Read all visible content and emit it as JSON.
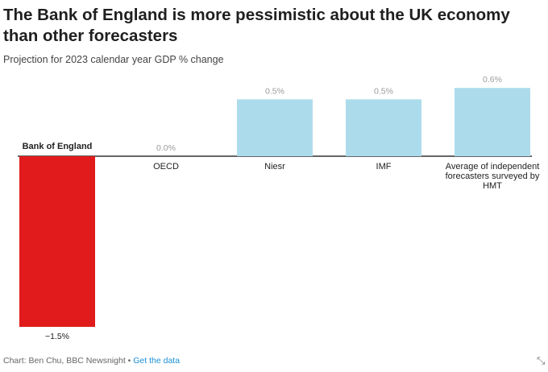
{
  "title": "The Bank of England is more pessimistic about the UK economy than other forecasters",
  "subtitle": "Projection for 2023 calendar year GDP % change",
  "footer": {
    "source": "Chart: Ben Chu, BBC Newsnight",
    "separator": " • ",
    "link": "Get the data"
  },
  "expand_icon": "⤡",
  "chart_data": {
    "type": "bar",
    "categories": [
      "Bank of England",
      "OECD",
      "Niesr",
      "IMF",
      "Average of independent forecasters surveyed by HMT"
    ],
    "values": [
      -1.5,
      0.0,
      0.5,
      0.5,
      0.6
    ],
    "value_labels": [
      "−1.5%",
      "0.0%",
      "0.5%",
      "0.5%",
      "0.6%"
    ],
    "colors": {
      "negative": "#e11b1b",
      "positive": "#acdcec",
      "label_positive": "#9b9b9b",
      "label_negative": "#222222",
      "baseline": "#333333"
    },
    "ylim": [
      -1.5,
      0.6
    ],
    "grid": false,
    "legend": "none"
  }
}
